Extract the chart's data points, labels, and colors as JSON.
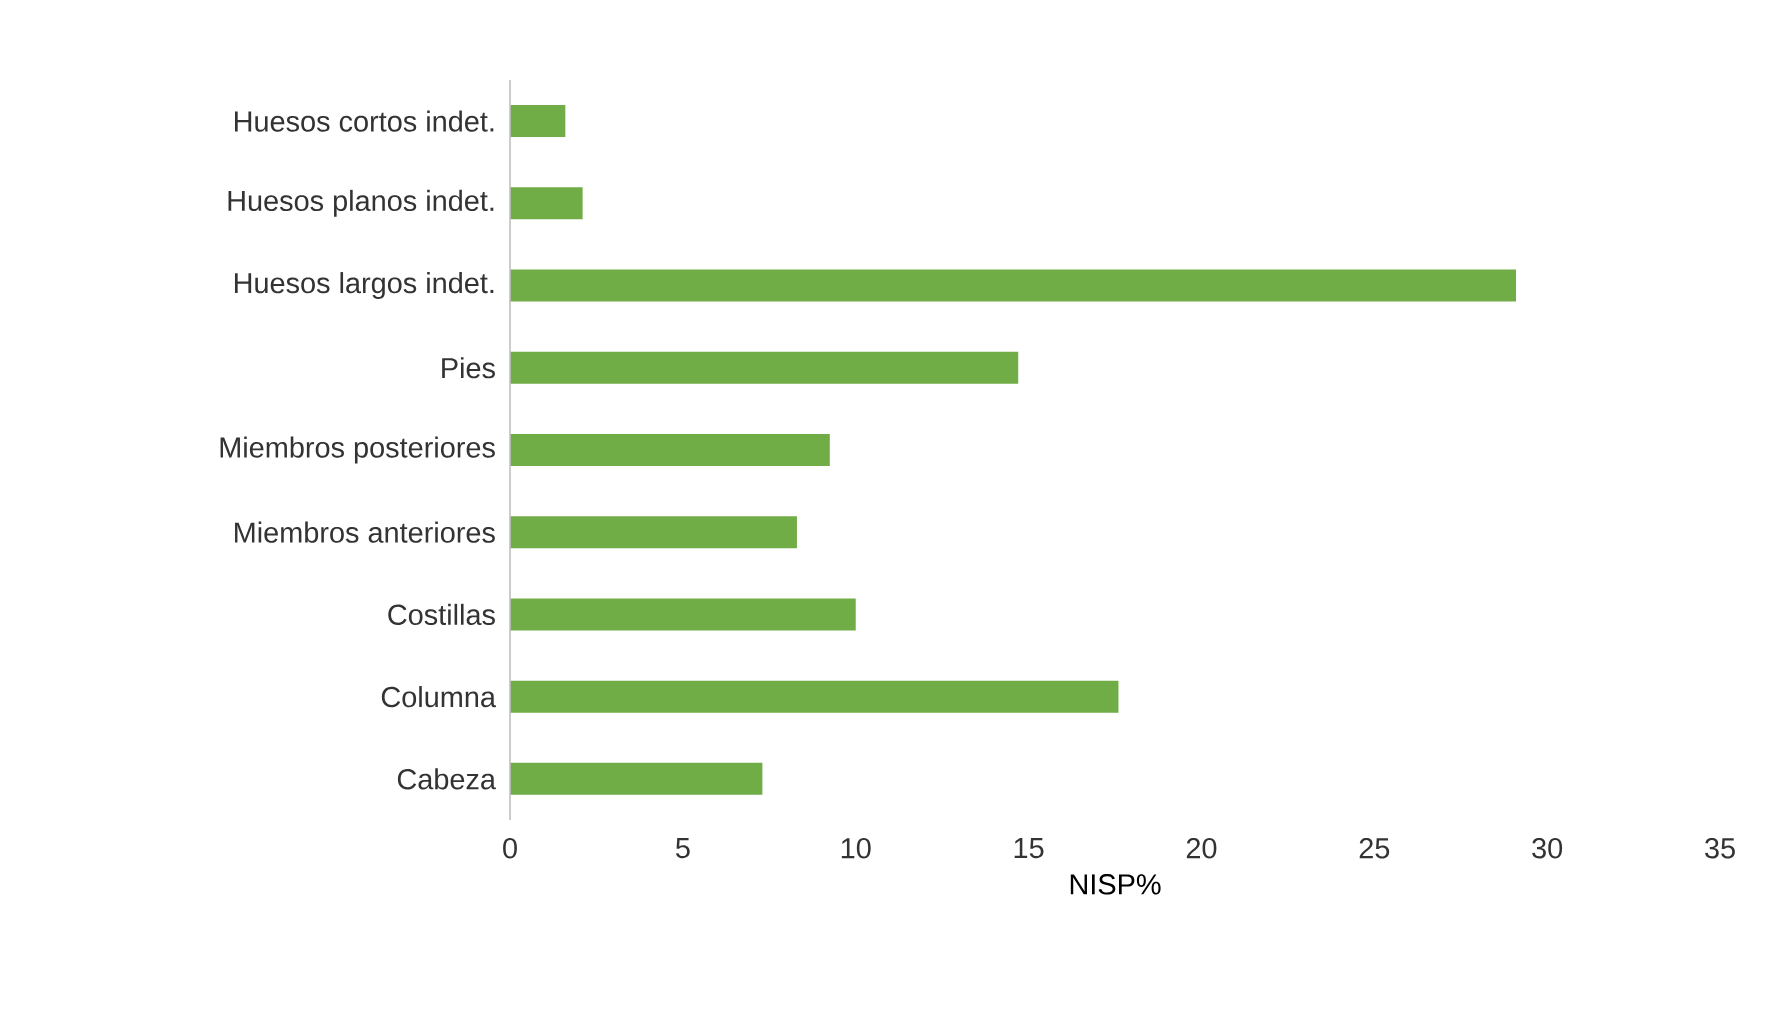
{
  "chart_data": {
    "type": "bar",
    "orientation": "horizontal",
    "xlabel": "NISP%",
    "categories": [
      "Huesos cortos indet.",
      "Huesos planos indet.",
      "Huesos largos indet.",
      "Pies",
      "Miembros posteriores",
      "Miembros anteriores",
      "Costillas",
      "Columna",
      "Cabeza"
    ],
    "values": [
      1.6,
      2.1,
      29.1,
      14.7,
      9.25,
      8.3,
      10.0,
      17.6,
      7.3
    ],
    "color": "#70ad47",
    "xlim": [
      0,
      35
    ],
    "xticks": [
      0,
      5,
      10,
      15,
      20,
      25,
      30,
      35
    ]
  }
}
